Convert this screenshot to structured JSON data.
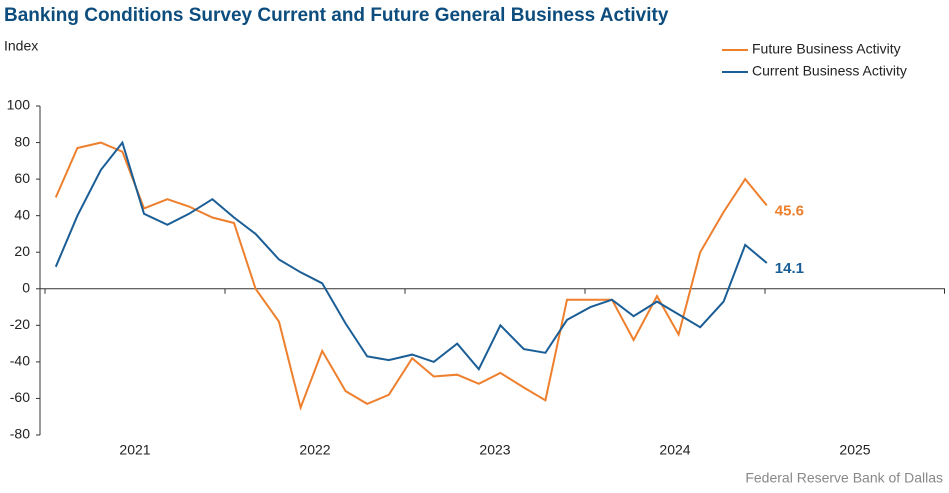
{
  "chart_data": {
    "type": "line",
    "title": "Banking Conditions Survey Current and Future General Business Activity",
    "y_label": "Index",
    "source": "Federal Reserve Bank of Dallas",
    "x": [
      2021.06,
      2021.18,
      2021.31,
      2021.43,
      2021.55,
      2021.68,
      2021.8,
      2021.93,
      2022.05,
      2022.17,
      2022.3,
      2022.42,
      2022.54,
      2022.67,
      2022.79,
      2022.91,
      2023.04,
      2023.16,
      2023.29,
      2023.41,
      2023.53,
      2023.66,
      2023.78,
      2023.9,
      2024.03,
      2024.15,
      2024.27,
      2024.4,
      2024.52,
      2024.64,
      2024.77,
      2024.89,
      2025.01
    ],
    "series": [
      {
        "name": "Future Business Activity",
        "color": "#ee7f2d",
        "values": [
          50,
          77,
          80,
          75,
          44,
          49,
          45,
          39,
          36,
          0,
          -18,
          -65,
          -34,
          -56,
          -63,
          -58,
          -38,
          -48,
          -47,
          -52,
          -46,
          -54,
          -61,
          -6,
          -6,
          -6,
          -28,
          -4,
          -25,
          20,
          42,
          60,
          45.6
        ]
      },
      {
        "name": "Current Business Activity",
        "color": "#1b5e96",
        "values": [
          12,
          40,
          65,
          80,
          41,
          35,
          41,
          49,
          39,
          30,
          16,
          9,
          3,
          -19,
          -37,
          -39,
          -36,
          -40,
          -30,
          -44,
          -20,
          -33,
          -35,
          -17,
          -10,
          -6,
          -15,
          -7,
          -14,
          -21,
          -7,
          24,
          14.1
        ]
      }
    ],
    "xlim": [
      2021,
      2026
    ],
    "xticks": [
      2021,
      2022,
      2023,
      2024,
      2025,
      2026
    ],
    "year_labels": [
      2021,
      2022,
      2023,
      2024,
      2025
    ],
    "ylim": [
      -80,
      100
    ],
    "yticks": [
      -80,
      -60,
      -40,
      -20,
      0,
      20,
      40,
      60,
      80,
      100
    ],
    "label_last": true,
    "legend": "top-right"
  }
}
